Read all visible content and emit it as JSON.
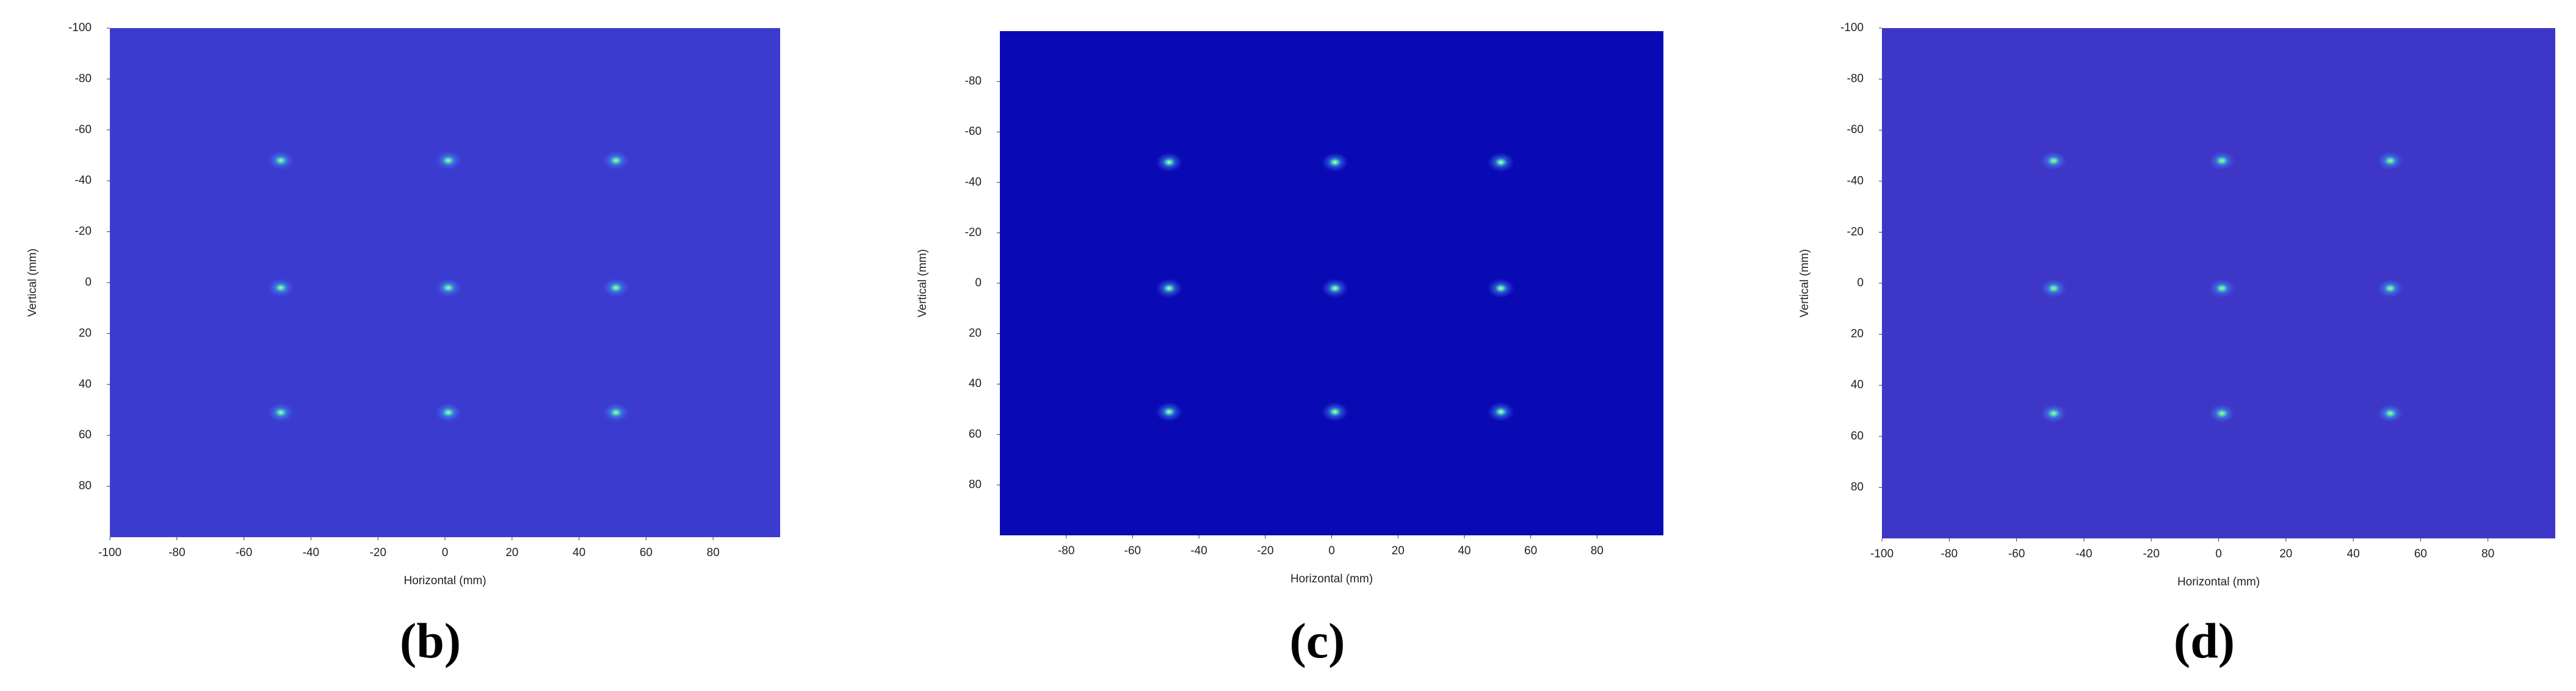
{
  "chart_data": [
    {
      "type": "heatmap",
      "label": "(b)",
      "xlabel": "Horizontal (mm)",
      "ylabel": "Vertical (mm)",
      "x": [
        -49,
        1,
        51,
        -49,
        1,
        51,
        -49,
        1,
        51
      ],
      "y": [
        -48,
        -48,
        -48,
        2,
        2,
        2,
        51,
        51,
        51
      ],
      "xlim": [
        -100,
        100
      ],
      "ylim": [
        -100,
        100
      ],
      "xticks": [
        -100,
        -80,
        -60,
        -40,
        -20,
        0,
        20,
        40,
        60,
        80
      ],
      "yticks": [
        -100,
        -80,
        -60,
        -40,
        -20,
        0,
        20,
        40,
        60,
        80
      ],
      "color": "#3b3bcf",
      "spot_color": "#d8f060"
    },
    {
      "type": "heatmap",
      "label": "(c)",
      "xlabel": "Horizontal (mm)",
      "ylabel": "Vertical (mm)",
      "x": [
        -49,
        1,
        51,
        -49,
        1,
        51,
        -49,
        1,
        51
      ],
      "y": [
        -48,
        -48,
        -48,
        2,
        2,
        2,
        51,
        51,
        51
      ],
      "xlim": [
        -100,
        100
      ],
      "ylim": [
        -100,
        100
      ],
      "xticks": [
        -80,
        -60,
        -40,
        -20,
        0,
        20,
        40,
        60,
        80
      ],
      "yticks": [
        -80,
        -60,
        -40,
        -20,
        0,
        20,
        40,
        60,
        80
      ],
      "color": "#0a0ab4",
      "spot_color": "#f0f080"
    },
    {
      "type": "heatmap",
      "label": "(d)",
      "xlabel": "Horizontal (mm)",
      "ylabel": "Vertical (mm)",
      "x": [
        -49,
        1,
        51,
        -49,
        1,
        51,
        -49,
        1,
        51
      ],
      "y": [
        -48,
        -48,
        -48,
        2,
        2,
        2,
        51,
        51,
        51
      ],
      "xlim": [
        -100,
        100
      ],
      "ylim": [
        -100,
        100
      ],
      "xticks": [
        -100,
        -80,
        -60,
        -40,
        -20,
        0,
        20,
        40,
        60,
        80
      ],
      "yticks": [
        -100,
        -80,
        -60,
        -40,
        -20,
        0,
        20,
        40,
        60,
        80
      ],
      "color": "#3d36c6",
      "spot_color": "#e0e850"
    }
  ]
}
